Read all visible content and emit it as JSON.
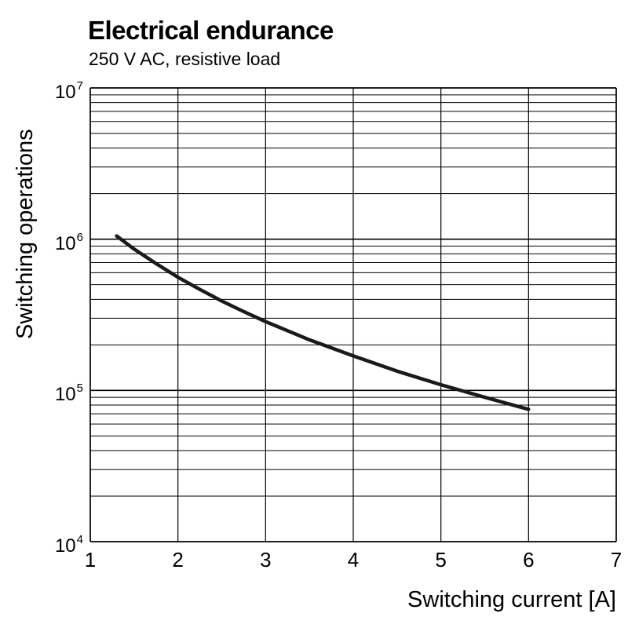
{
  "chart": {
    "title": "Electrical endurance",
    "subtitle": "250 V AC, resistive load",
    "ylabel": "Switching operations",
    "xlabel": "Switching current [A]",
    "colors": {
      "background": "#ffffff",
      "grid_minor": "#000000",
      "grid_major": "#000000",
      "curve": "#1a1a1a",
      "text": "#000000"
    }
  },
  "chart_data": {
    "type": "line",
    "title": "Electrical endurance",
    "subtitle": "250 V AC, resistive load",
    "xlabel": "Switching current [A]",
    "ylabel": "Switching operations",
    "x_scale": "linear",
    "y_scale": "log",
    "xlim": [
      1,
      7
    ],
    "ylim": [
      10000,
      10000000
    ],
    "ylim_log_exponents": [
      4,
      7
    ],
    "grid": true,
    "legend": false,
    "x_ticks": [
      {
        "value": 1,
        "label": "1"
      },
      {
        "value": 2,
        "label": "2"
      },
      {
        "value": 3,
        "label": "3"
      },
      {
        "value": 4,
        "label": "4"
      },
      {
        "value": 5,
        "label": "5"
      },
      {
        "value": 6,
        "label": "6"
      },
      {
        "value": 7,
        "label": "7"
      }
    ],
    "y_ticks": [
      {
        "value": 10000000,
        "base": "10",
        "exp": "7"
      },
      {
        "value": 1000000,
        "base": "10",
        "exp": "6"
      },
      {
        "value": 100000,
        "base": "10",
        "exp": "5"
      },
      {
        "value": 10000,
        "base": "10",
        "exp": "4"
      }
    ],
    "series": [
      {
        "name": "endurance-curve",
        "points": [
          [
            1.3,
            1050000
          ],
          [
            1.5,
            860000
          ],
          [
            1.75,
            690000
          ],
          [
            2,
            560000
          ],
          [
            2.25,
            465000
          ],
          [
            2.5,
            390000
          ],
          [
            2.75,
            332000
          ],
          [
            3,
            285000
          ],
          [
            3.5,
            216000
          ],
          [
            4,
            169000
          ],
          [
            4.5,
            134000
          ],
          [
            5,
            109000
          ],
          [
            5.5,
            90000
          ],
          [
            6,
            75000
          ]
        ]
      }
    ]
  },
  "layout_note": ""
}
